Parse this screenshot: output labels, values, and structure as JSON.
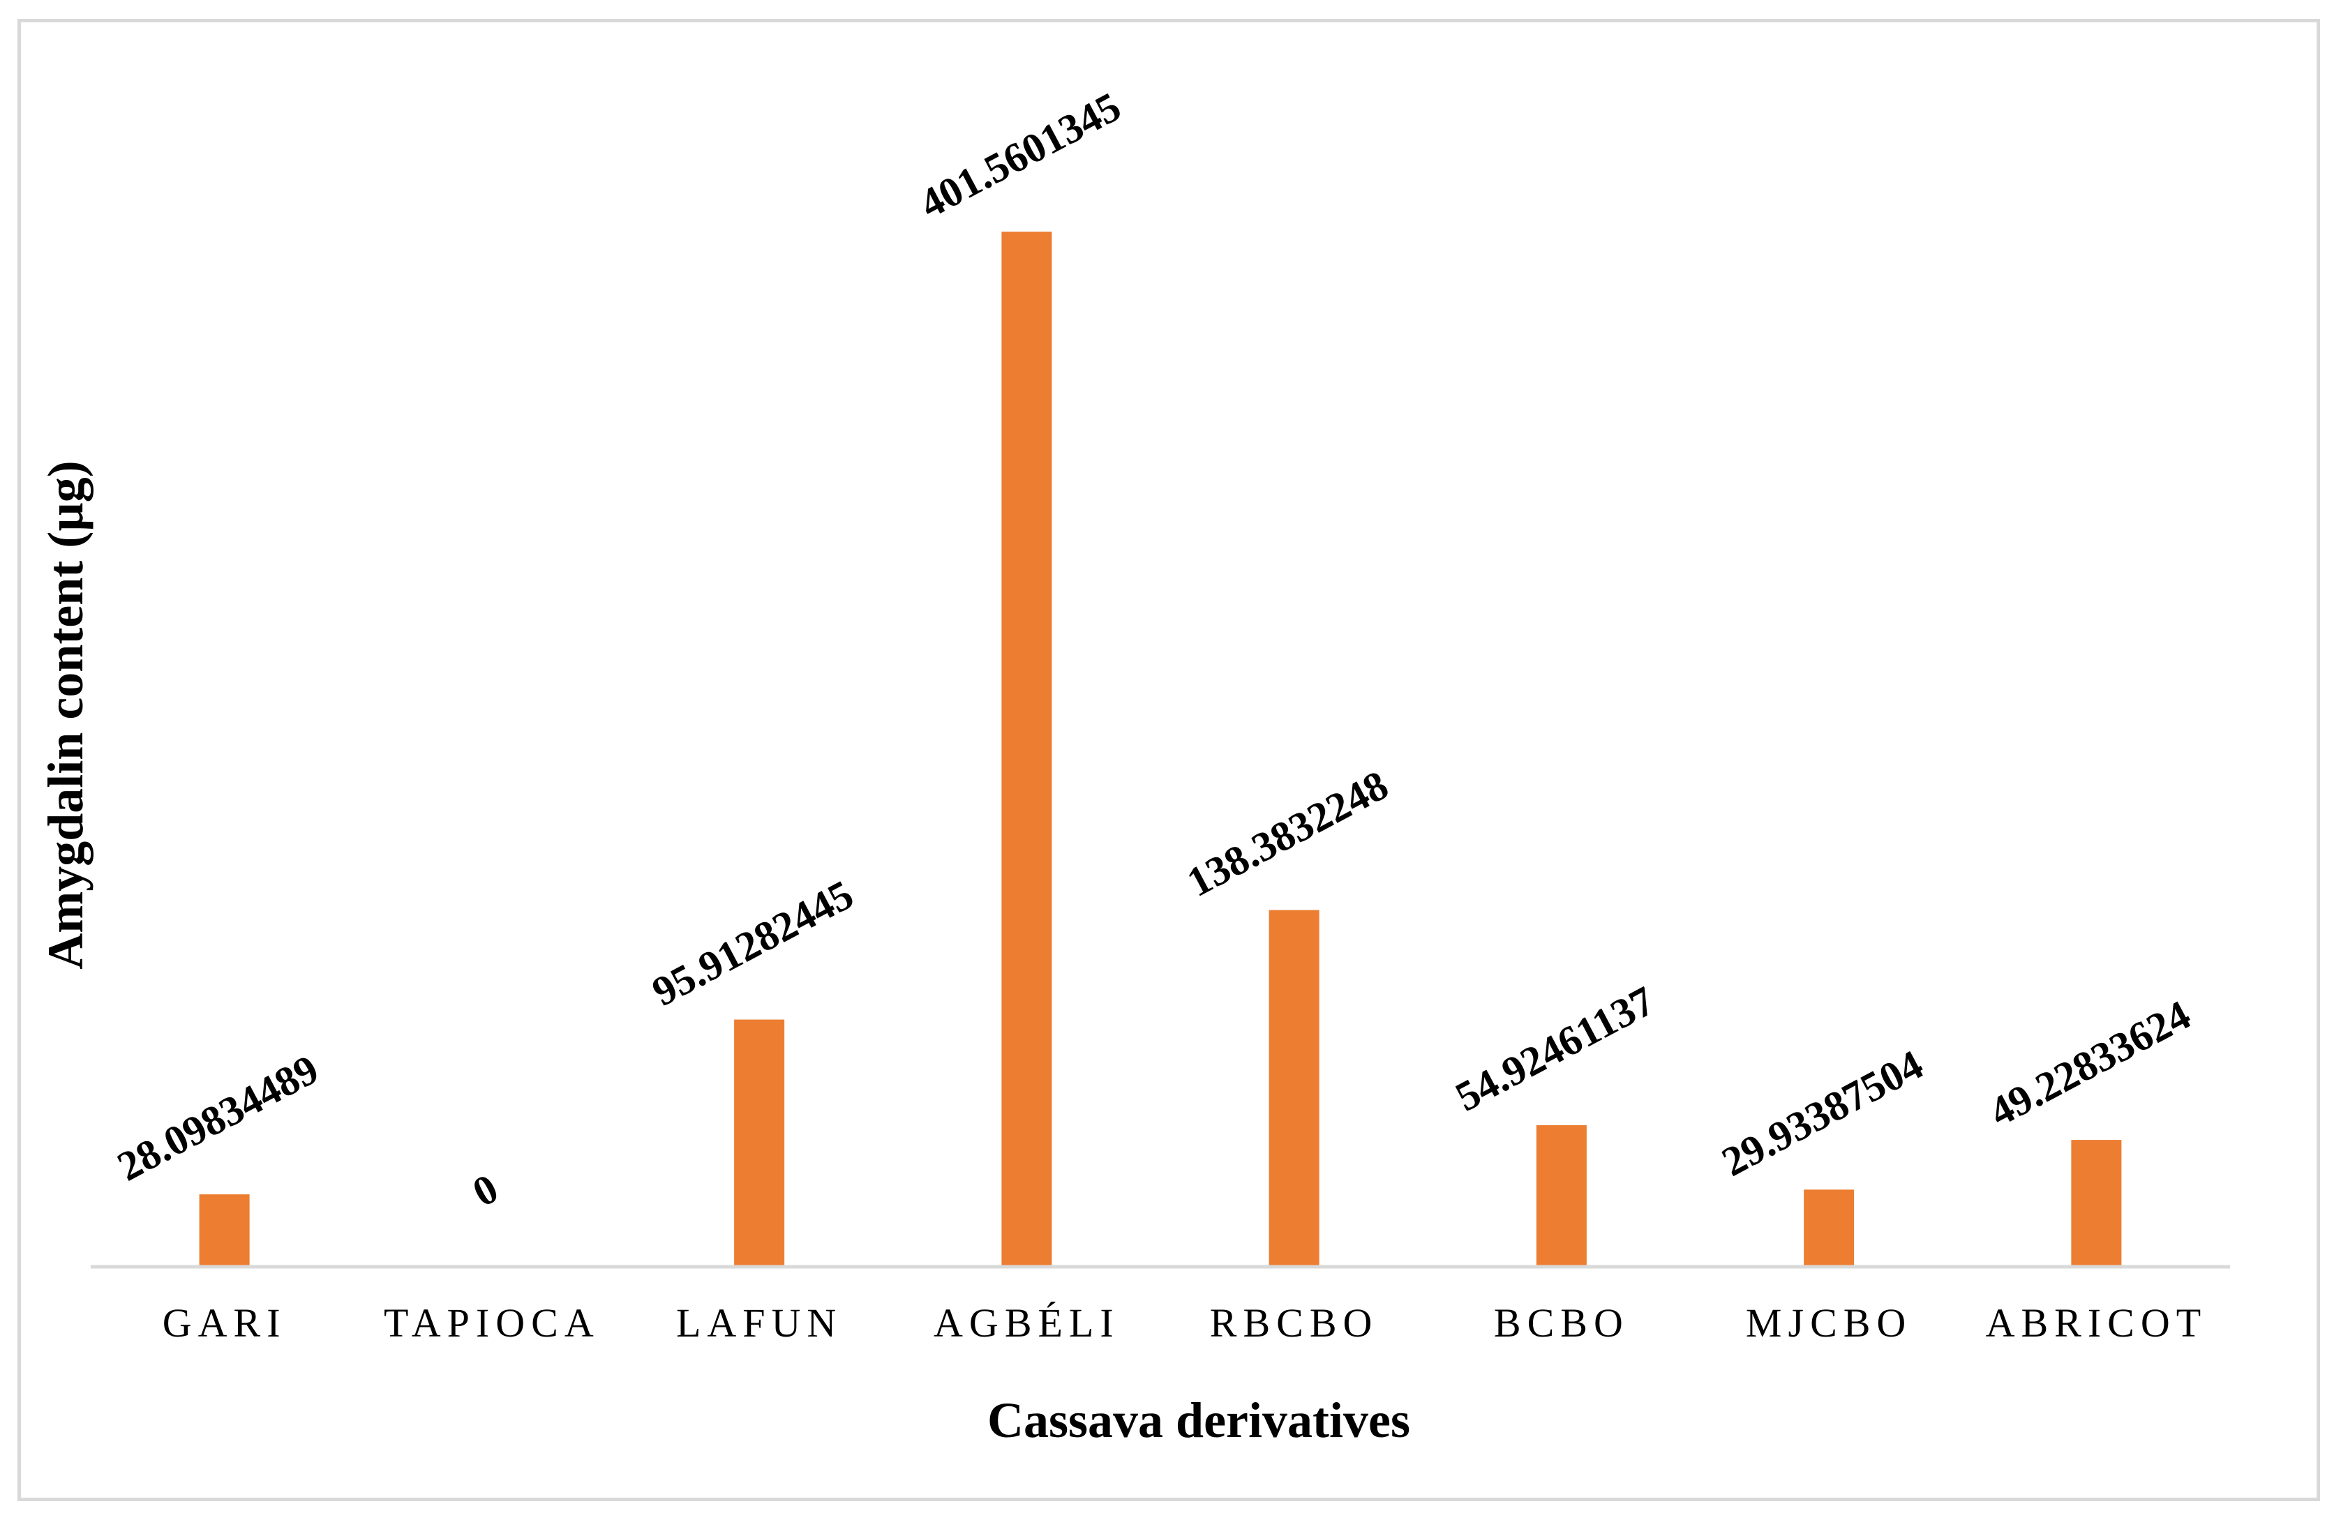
{
  "chart_data": {
    "type": "bar",
    "title": "",
    "xlabel": "Cassava derivatives",
    "ylabel": "Amygdalin content (µg)",
    "categories": [
      "GARI",
      "TAPIOCA",
      "LAFUN",
      "AGBÉLI",
      "RBCBO",
      "BCBO",
      "MJCBO",
      "ABRICOT"
    ],
    "values": [
      28.09834489,
      0,
      95.91282445,
      401.5601345,
      138.3832248,
      54.92461137,
      29.93387504,
      49.22833624
    ],
    "value_labels": [
      "28.09834489",
      "0",
      "95.91282445",
      "401.5601345",
      "138.3832248",
      "54.92461137",
      "29.93387504",
      "49.22833624"
    ],
    "ylim": [
      0,
      420
    ],
    "grid": false,
    "legend": "none",
    "bar_color": "#ED7D31",
    "axis_color": "#D9D9D9"
  }
}
